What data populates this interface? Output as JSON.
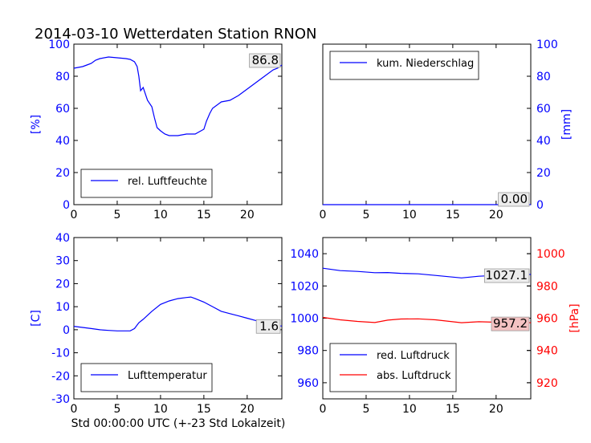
{
  "title": "2014-03-10 Wetterdaten Station RNON",
  "xlabel": "Std 00:00:00 UTC (+-23 Std Lokalzeit)",
  "chart_data": [
    {
      "id": "humidity",
      "type": "line",
      "xlim": [
        0,
        24
      ],
      "ylim": [
        0,
        100
      ],
      "xticks": [
        0,
        5,
        10,
        15,
        20
      ],
      "yticks": [
        0,
        20,
        40,
        60,
        80,
        100
      ],
      "ylabel": "[%]",
      "annotation": "86.8",
      "legend": "rel. Luftfeuchte",
      "legend_position": "lower-left",
      "series": [
        {
          "name": "rel. Luftfeuchte",
          "color": "#0000ff",
          "points": [
            [
              0,
              85
            ],
            [
              1,
              86
            ],
            [
              1.5,
              87
            ],
            [
              2,
              88
            ],
            [
              2.5,
              90
            ],
            [
              3,
              91
            ],
            [
              4,
              92
            ],
            [
              5,
              91.5
            ],
            [
              6,
              91
            ],
            [
              6.5,
              90.5
            ],
            [
              7,
              89
            ],
            [
              7.3,
              86
            ],
            [
              7.5,
              80
            ],
            [
              7.7,
              71
            ],
            [
              8,
              73
            ],
            [
              8.5,
              65
            ],
            [
              9,
              61
            ],
            [
              9.3,
              54
            ],
            [
              9.6,
              48
            ],
            [
              10,
              46
            ],
            [
              10.5,
              44
            ],
            [
              11,
              43
            ],
            [
              12,
              43
            ],
            [
              13,
              44
            ],
            [
              14,
              44
            ],
            [
              15,
              47
            ],
            [
              15.3,
              52
            ],
            [
              15.7,
              57
            ],
            [
              16,
              60
            ],
            [
              17,
              64
            ],
            [
              18,
              65
            ],
            [
              19,
              68
            ],
            [
              20,
              72
            ],
            [
              21,
              76
            ],
            [
              22,
              80
            ],
            [
              23,
              84
            ],
            [
              23.5,
              85
            ],
            [
              24,
              87
            ]
          ]
        }
      ]
    },
    {
      "id": "precipitation",
      "type": "line",
      "xlim": [
        0,
        24
      ],
      "ylim": [
        0,
        100
      ],
      "xticks": [
        0,
        5,
        10,
        15,
        20
      ],
      "yticks": [
        0,
        20,
        40,
        60,
        80,
        100
      ],
      "ylabel": "[mm]",
      "annotation": "0.00",
      "legend": "kum. Niederschlag",
      "legend_position": "upper-left",
      "series": [
        {
          "name": "kum. Niederschlag",
          "color": "#0000ff",
          "points": [
            [
              0,
              0
            ],
            [
              24,
              0
            ]
          ]
        }
      ]
    },
    {
      "id": "temperature",
      "type": "line",
      "xlim": [
        0,
        24
      ],
      "ylim": [
        -30,
        40
      ],
      "xticks": [
        0,
        5,
        10,
        15,
        20
      ],
      "yticks": [
        -30,
        -20,
        -10,
        0,
        10,
        20,
        30,
        40
      ],
      "ylabel": "[C]",
      "annotation": "1.6",
      "legend": "Lufttemperatur",
      "legend_position": "lower-left",
      "series": [
        {
          "name": "Lufttemperatur",
          "color": "#0000ff",
          "points": [
            [
              0,
              1.5
            ],
            [
              1,
              1
            ],
            [
              2,
              0.5
            ],
            [
              3,
              0
            ],
            [
              4,
              -0.3
            ],
            [
              5,
              -0.5
            ],
            [
              6,
              -0.5
            ],
            [
              6.5,
              -0.5
            ],
            [
              7,
              0.5
            ],
            [
              7.5,
              3
            ],
            [
              8,
              4.5
            ],
            [
              9,
              8
            ],
            [
              10,
              11
            ],
            [
              11,
              12.5
            ],
            [
              12,
              13.5
            ],
            [
              13,
              14
            ],
            [
              13.5,
              14.2
            ],
            [
              14,
              13.5
            ],
            [
              15,
              12
            ],
            [
              16,
              10
            ],
            [
              17,
              8
            ],
            [
              18,
              7
            ],
            [
              19,
              6
            ],
            [
              20,
              5
            ],
            [
              21,
              4
            ],
            [
              22,
              3
            ],
            [
              23,
              2
            ],
            [
              24,
              1.6
            ]
          ]
        }
      ]
    },
    {
      "id": "pressure",
      "type": "line",
      "xlim": [
        0,
        24
      ],
      "ylim": [
        950,
        1050
      ],
      "xticks": [
        0,
        5,
        10,
        15,
        20
      ],
      "yticks": [
        960,
        980,
        1000,
        1020,
        1040
      ],
      "y2lim": [
        910,
        1010
      ],
      "y2ticks": [
        920,
        940,
        960,
        980,
        1000
      ],
      "y2label": "[hPa]",
      "annotations": [
        "1027.1",
        "957.2"
      ],
      "legend": [
        "red. Luftdruck",
        "abs. Luftdruck"
      ],
      "legend_position": "lower-left",
      "series": [
        {
          "name": "red. Luftdruck",
          "color": "#0000ff",
          "axis": "left",
          "points": [
            [
              0,
              1031
            ],
            [
              2,
              1029.5
            ],
            [
              4,
              1029
            ],
            [
              6,
              1028.2
            ],
            [
              7.5,
              1028.3
            ],
            [
              9,
              1027.8
            ],
            [
              11,
              1027.5
            ],
            [
              13,
              1026.5
            ],
            [
              16,
              1025
            ],
            [
              18,
              1026
            ],
            [
              20,
              1026.5
            ],
            [
              22,
              1027
            ],
            [
              24,
              1027.1
            ]
          ]
        },
        {
          "name": "abs. Luftdruck",
          "color": "#ff0000",
          "axis": "right",
          "points": [
            [
              0,
              960.5
            ],
            [
              2,
              959
            ],
            [
              4,
              958
            ],
            [
              6,
              957.3
            ],
            [
              7.5,
              958.8
            ],
            [
              9,
              959.5
            ],
            [
              11,
              959.6
            ],
            [
              13,
              959
            ],
            [
              16,
              957.2
            ],
            [
              18,
              957.8
            ],
            [
              20,
              957.5
            ],
            [
              22,
              957.6
            ],
            [
              24,
              957.2
            ]
          ]
        }
      ]
    }
  ]
}
